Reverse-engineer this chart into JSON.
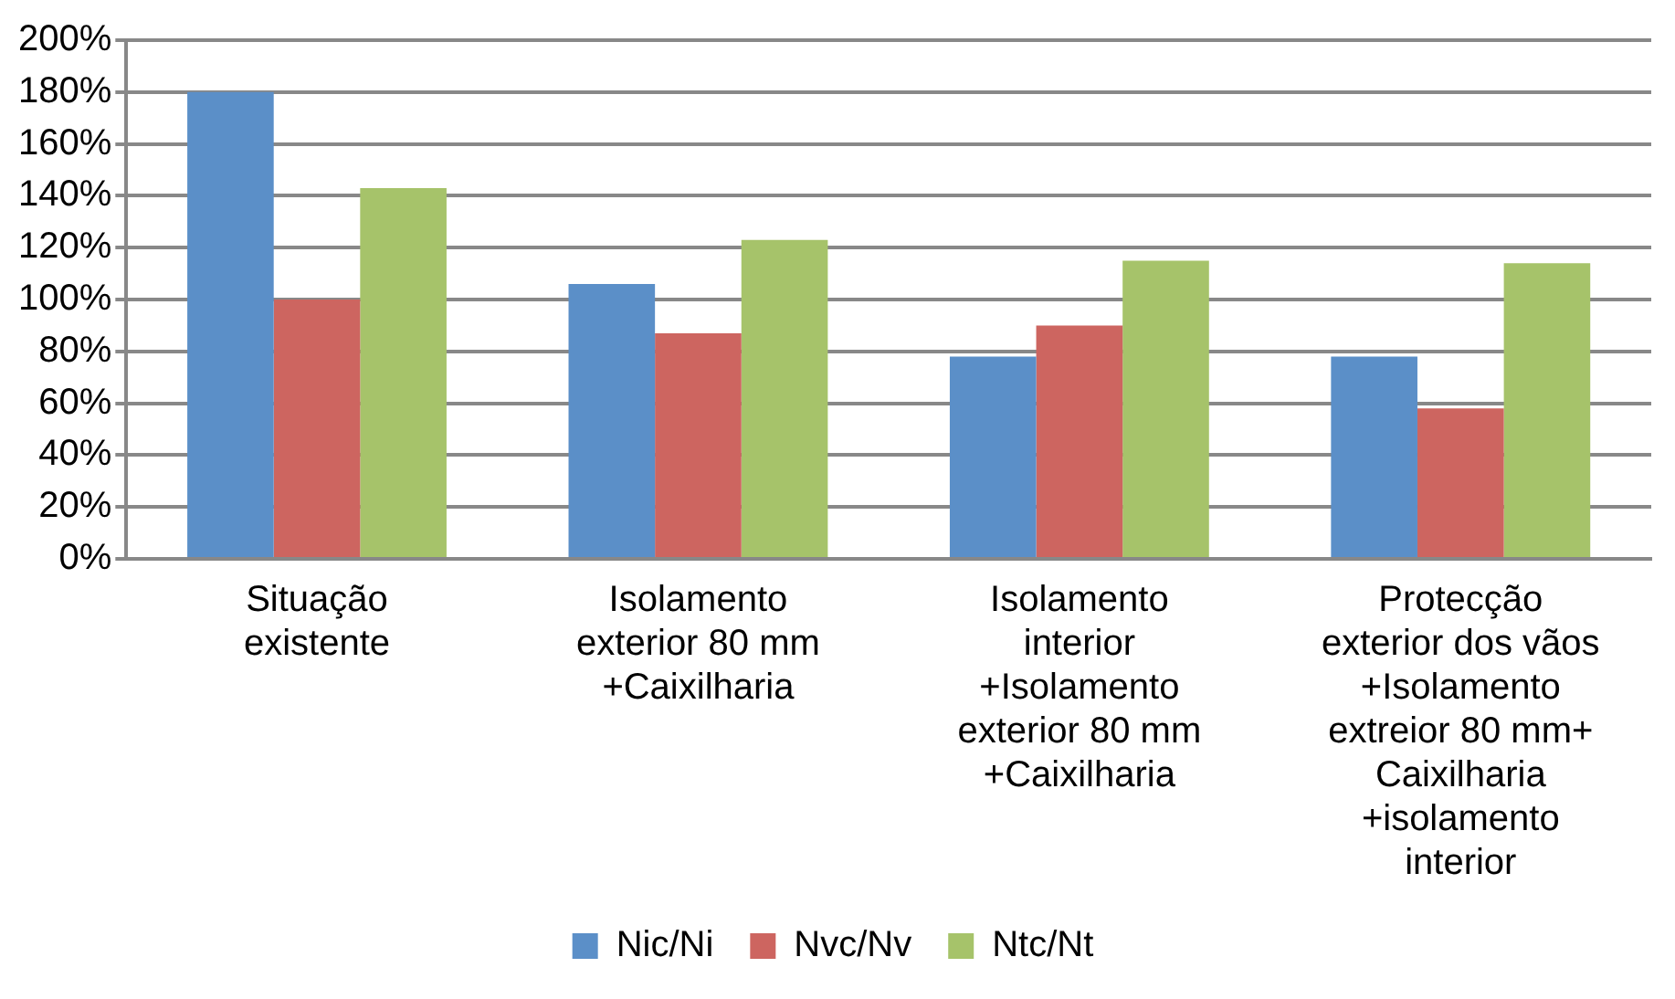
{
  "chart_data": {
    "type": "bar",
    "categories": [
      "Situação\nexistente",
      "Isolamento\nexterior 80 mm\n+Caixilharia",
      "Isolamento\ninterior\n+Isolamento\nexterior 80 mm\n+Caixilharia",
      "Protecção\nexterior dos vãos\n+Isolamento\nextreior 80 mm+\nCaixilharia\n+isolamento\ninterior"
    ],
    "series": [
      {
        "name": "Nic/Ni",
        "color": "#5b8fc8",
        "values": [
          180,
          106,
          78,
          78
        ]
      },
      {
        "name": "Nvc/Nv",
        "color": "#cd6560",
        "values": [
          100,
          87,
          90,
          58
        ]
      },
      {
        "name": "Ntc/Nt",
        "color": "#a6c36a",
        "values": [
          143,
          123,
          115,
          114
        ]
      }
    ],
    "ylim": [
      0,
      200
    ],
    "yticks": [
      {
        "value": 0,
        "label": "0%"
      },
      {
        "value": 20,
        "label": "20%"
      },
      {
        "value": 40,
        "label": "40%"
      },
      {
        "value": 60,
        "label": "60%"
      },
      {
        "value": 80,
        "label": "80%"
      },
      {
        "value": 100,
        "label": "100%"
      },
      {
        "value": 120,
        "label": "120%"
      },
      {
        "value": 140,
        "label": "140%"
      },
      {
        "value": 160,
        "label": "160%"
      },
      {
        "value": 180,
        "label": "180%"
      },
      {
        "value": 200,
        "label": "200%"
      }
    ],
    "grid": "y",
    "legend": "bottom"
  }
}
